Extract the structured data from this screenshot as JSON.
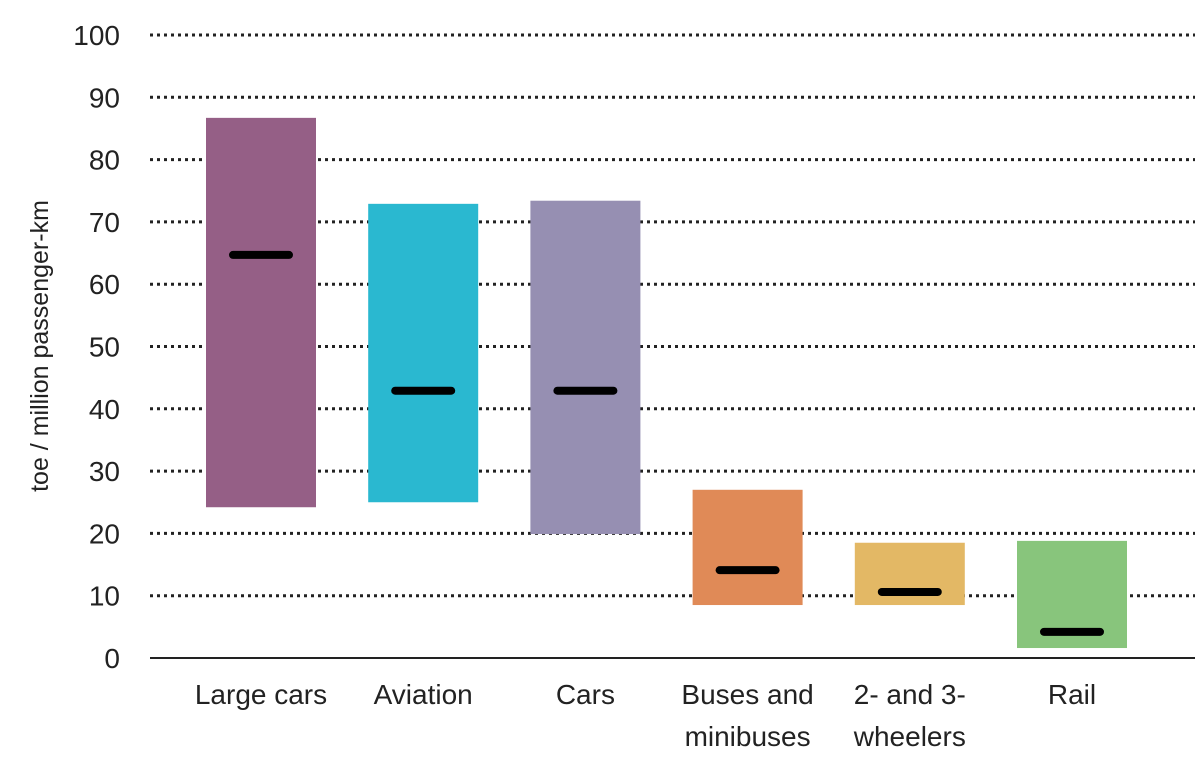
{
  "chart_data": {
    "type": "bar",
    "subtype": "floating-range-with-median",
    "title": "",
    "xlabel": "",
    "ylabel": "toe / million passenger-km",
    "ylim": [
      0,
      100
    ],
    "yticks": [
      0,
      10,
      20,
      30,
      40,
      50,
      60,
      70,
      80,
      90,
      100
    ],
    "grid": true,
    "categories": [
      {
        "label": [
          "Large cars"
        ],
        "min": 24.2,
        "max": 86.7,
        "median": 64.7,
        "color": "#955f86"
      },
      {
        "label": [
          "Aviation"
        ],
        "min": 25.0,
        "max": 72.9,
        "median": 42.9,
        "color": "#2ab8d0"
      },
      {
        "label": [
          "Cars"
        ],
        "min": 19.9,
        "max": 73.4,
        "median": 42.9,
        "color": "#968fb2"
      },
      {
        "label": [
          "Buses and",
          "minibuses"
        ],
        "min": 8.5,
        "max": 27.0,
        "median": 14.1,
        "color": "#e08a57"
      },
      {
        "label": [
          "2- and 3-",
          "wheelers"
        ],
        "min": 8.5,
        "max": 18.5,
        "median": 10.6,
        "color": "#e3b865"
      },
      {
        "label": [
          "Rail"
        ],
        "min": 1.6,
        "max": 18.8,
        "median": 4.2,
        "color": "#88c57c"
      }
    ]
  }
}
